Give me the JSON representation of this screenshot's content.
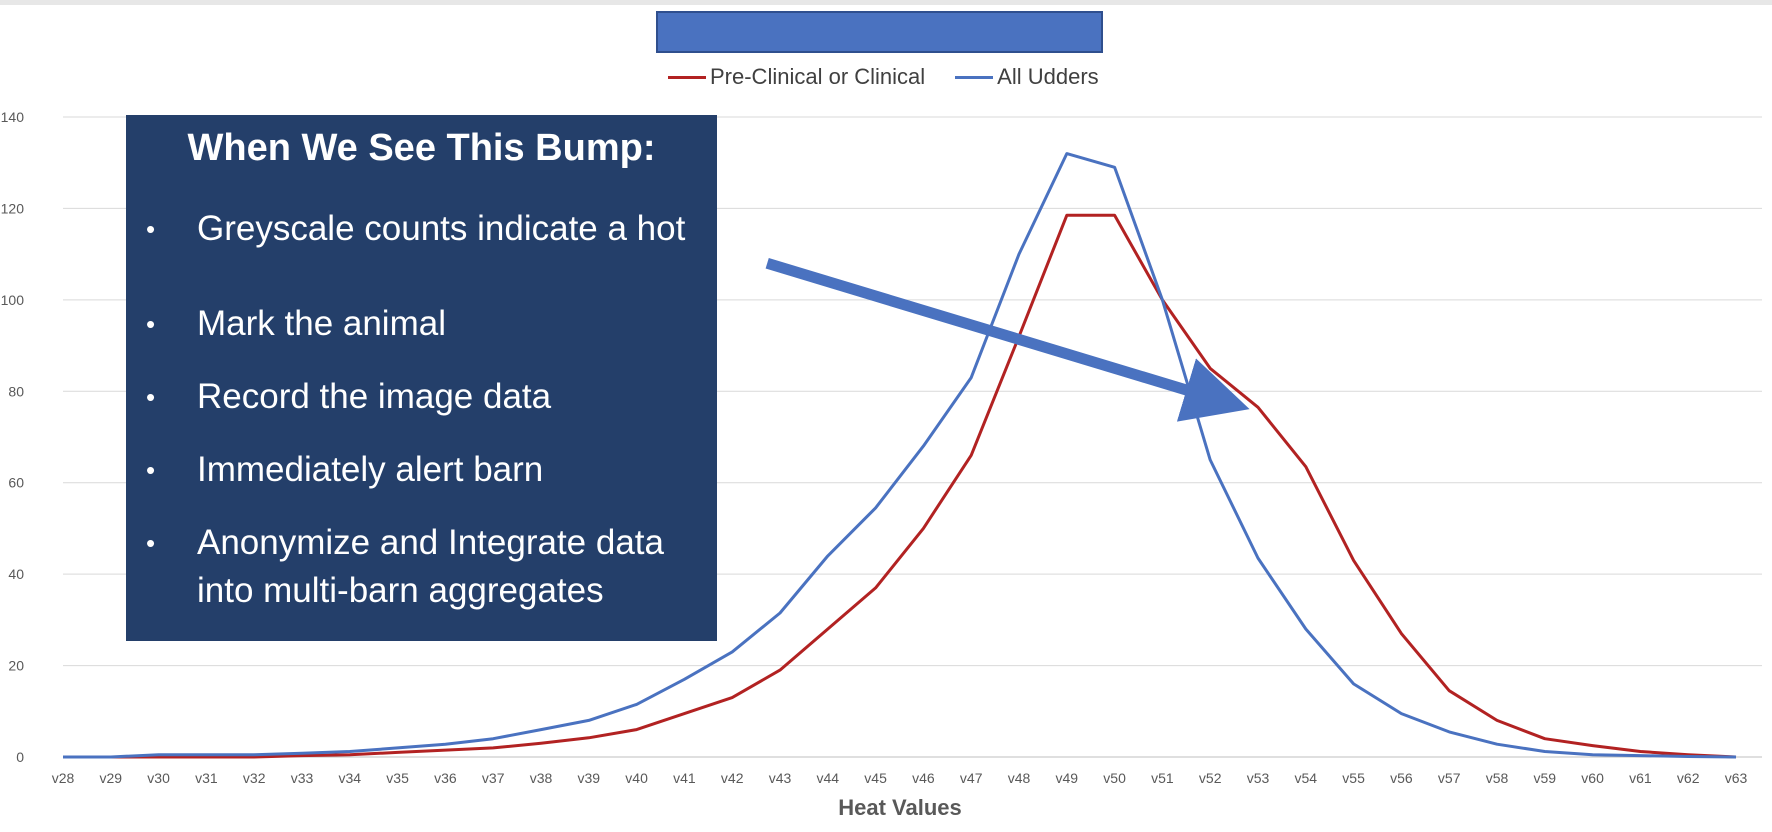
{
  "callout": {
    "title": "When We See This Bump:",
    "bullets": [
      "Greyscale counts indicate a hot",
      "Mark the animal",
      "Record the image data",
      "Immediately alert barn",
      "Anonymize and Integrate data into multi-barn aggregates"
    ]
  },
  "colors": {
    "title_bar": "#4a72c0",
    "callout_bg": "#243f6a",
    "arrow": "#4a72c0",
    "series_clinical": "#b22222",
    "series_all": "#4a72c0",
    "gridline": "#d9d9d9"
  },
  "chart_data": {
    "type": "line",
    "title": "",
    "xlabel": "Heat Values",
    "ylabel": "",
    "ylim": [
      0,
      140
    ],
    "yticks": [
      0,
      20,
      40,
      60,
      80,
      100,
      120,
      140
    ],
    "grid": true,
    "legend_position": "top",
    "categories": [
      "v28",
      "v29",
      "v30",
      "v31",
      "v32",
      "v33",
      "v34",
      "v35",
      "v36",
      "v37",
      "v38",
      "v39",
      "v40",
      "v41",
      "v42",
      "v43",
      "v44",
      "v45",
      "v46",
      "v47",
      "v48",
      "v49",
      "v50",
      "v51",
      "v52",
      "v53",
      "v54",
      "v55",
      "v56",
      "v57",
      "v58",
      "v59",
      "v60",
      "v61",
      "v62",
      "v63"
    ],
    "series": [
      {
        "name": "Pre-Clinical or Clinical",
        "color": "#b22222",
        "values": [
          0,
          0,
          0,
          0,
          0,
          0.3,
          0.5,
          1,
          1.5,
          2,
          3,
          4.2,
          6,
          9.5,
          13,
          19,
          28,
          37,
          50,
          66,
          92,
          118.5,
          118.5,
          100,
          85,
          76.5,
          63.5,
          43,
          27,
          14.5,
          8,
          4,
          2.5,
          1.2,
          0.5,
          0
        ]
      },
      {
        "name": "All Udders",
        "color": "#4a72c0",
        "values": [
          0,
          0,
          0.5,
          0.5,
          0.5,
          0.8,
          1.2,
          2,
          2.8,
          4,
          6,
          8,
          11.5,
          17,
          23,
          31.5,
          44,
          54.5,
          68,
          83,
          110,
          132,
          129,
          100,
          65,
          43.5,
          28,
          16,
          9.5,
          5.5,
          2.8,
          1.2,
          0.5,
          0.3,
          0.1,
          0
        ]
      }
    ],
    "annotation_arrow": {
      "from": [
        "v42",
        108
      ],
      "to": [
        "v53",
        76
      ]
    }
  }
}
